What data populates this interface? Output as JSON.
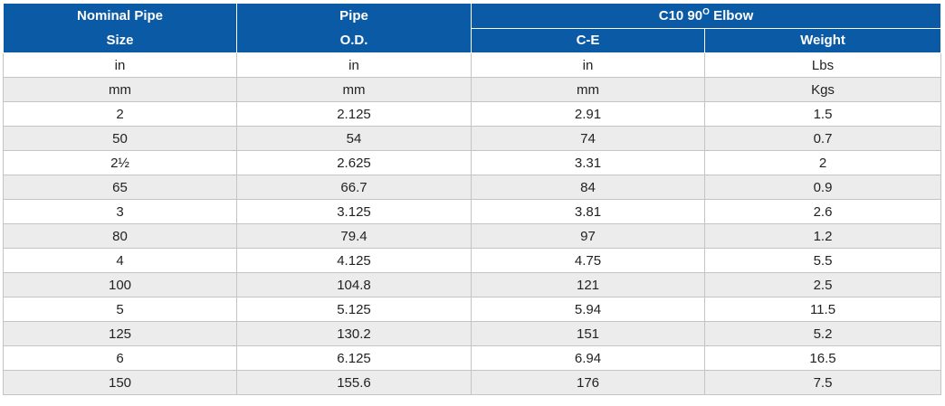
{
  "header": {
    "col1": {
      "line1": "Nominal Pipe",
      "line2": "Size"
    },
    "col2": {
      "line1": "Pipe",
      "line2": "O.D."
    },
    "group": {
      "prefix": "C10 90",
      "sup": "O",
      "suffix": " Elbow"
    },
    "col3": "C-E",
    "col4": "Weight"
  },
  "rows": [
    [
      "in",
      "in",
      "in",
      "Lbs"
    ],
    [
      "mm",
      "mm",
      "mm",
      "Kgs"
    ],
    [
      "2",
      "2.125",
      "2.91",
      "1.5"
    ],
    [
      "50",
      "54",
      "74",
      "0.7"
    ],
    [
      "2½",
      "2.625",
      "3.31",
      "2"
    ],
    [
      "65",
      "66.7",
      "84",
      "0.9"
    ],
    [
      "3",
      "3.125",
      "3.81",
      "2.6"
    ],
    [
      "80",
      "79.4",
      "97",
      "1.2"
    ],
    [
      "4",
      "4.125",
      "4.75",
      "5.5"
    ],
    [
      "100",
      "104.8",
      "121",
      "2.5"
    ],
    [
      "5",
      "5.125",
      "5.94",
      "11.5"
    ],
    [
      "125",
      "130.2",
      "151",
      "5.2"
    ],
    [
      "6",
      "6.125",
      "6.94",
      "16.5"
    ],
    [
      "150",
      "155.6",
      "176",
      "7.5"
    ]
  ],
  "colors": {
    "header_bg": "#0a5aa5",
    "header_text": "#ffffff",
    "stripe": "#ececec"
  }
}
